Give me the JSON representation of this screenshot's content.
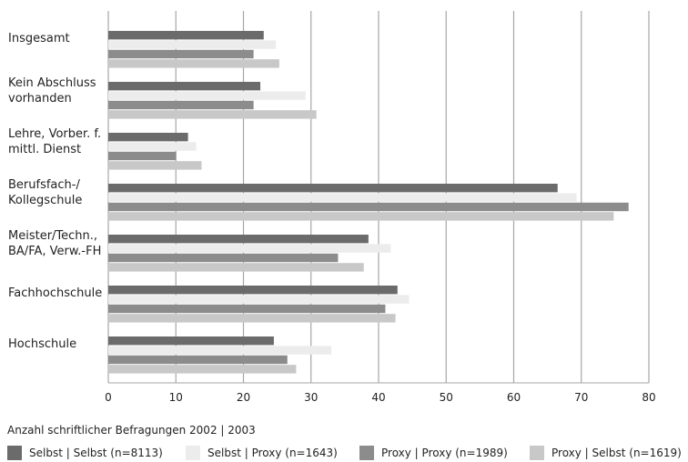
{
  "chart_data": {
    "type": "bar",
    "orientation": "horizontal",
    "categories": [
      [
        "Insgesamt"
      ],
      [
        "Kein Abschluss",
        "vorhanden"
      ],
      [
        "Lehre, Vorber. f.",
        "mittl. Dienst"
      ],
      [
        "Berufsfach-/",
        "Kollegschule"
      ],
      [
        "Meister/Techn.,",
        "BA/FA, Verw.-FH"
      ],
      [
        "Fachhochschule"
      ],
      [
        "Hochschule"
      ]
    ],
    "series": [
      {
        "name": "Selbst | Selbst (n=8113)",
        "color": "#6b6b6b",
        "values": [
          23.0,
          22.5,
          11.8,
          66.5,
          38.5,
          42.8,
          24.5
        ]
      },
      {
        "name": "Selbst | Proxy (n=1643)",
        "color": "#ececec",
        "values": [
          24.8,
          29.2,
          13.0,
          69.3,
          41.8,
          44.5,
          33.0
        ]
      },
      {
        "name": "Proxy | Proxy (n=1989)",
        "color": "#8c8c8c",
        "values": [
          21.5,
          21.5,
          10.0,
          77.0,
          34.0,
          41.0,
          26.5
        ]
      },
      {
        "name": "Proxy | Selbst (n=1619)",
        "color": "#c8c8c8",
        "values": [
          25.3,
          30.8,
          13.8,
          74.8,
          37.8,
          42.5,
          27.8
        ]
      }
    ],
    "xlim": [
      0,
      80
    ],
    "xticks": [
      "0",
      "10",
      "20",
      "30",
      "40",
      "50",
      "60",
      "70",
      "80"
    ],
    "grid": true,
    "legend": {
      "title": "Anzahl schriftlicher Befragungen 2002 | 2003",
      "placement": "bottom"
    }
  }
}
